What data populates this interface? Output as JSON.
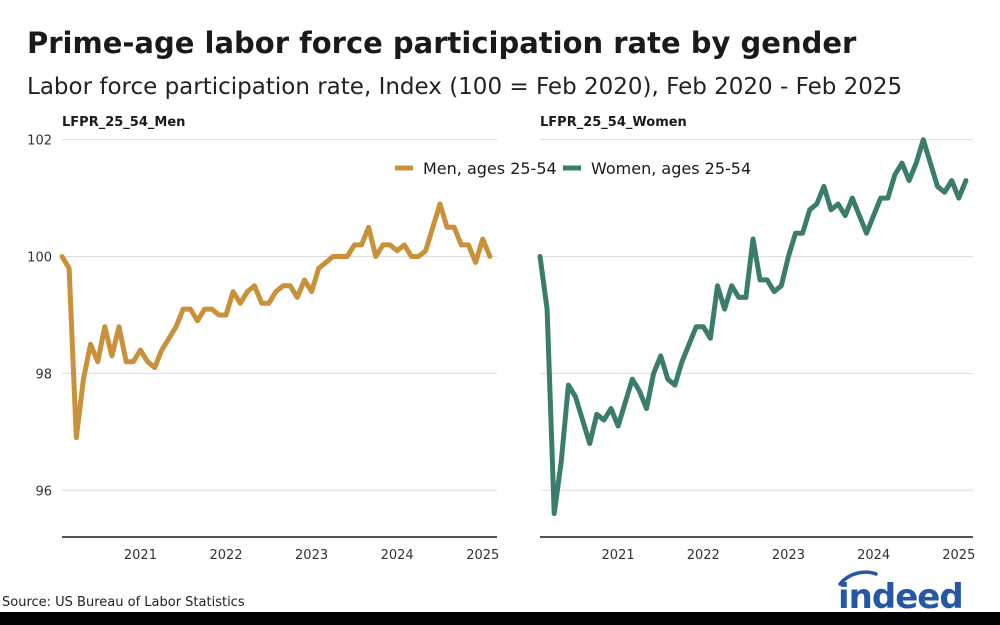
{
  "title": "Prime-age labor force participation rate by gender",
  "subtitle": "Labor force participation rate, Index (100 = Feb 2020), Feb 2020 - Feb 2025",
  "source": "Source: US Bureau of Labor Statistics",
  "logo_text": "indeed",
  "chart_data": {
    "type": "line",
    "ylim": [
      95.2,
      102.2
    ],
    "yticks": [
      96,
      98,
      100,
      102
    ],
    "ytick_labels": [
      "96",
      "98",
      "100",
      "102"
    ],
    "xlim": [
      "2020-02",
      "2025-03"
    ],
    "xticks": [
      "2021-01",
      "2022-01",
      "2023-01",
      "2024-01",
      "2025-01"
    ],
    "xtick_labels": [
      "2021",
      "2022",
      "2023",
      "2024",
      "2025"
    ],
    "grid": "horizontal",
    "legend": {
      "position": "top",
      "entries": [
        {
          "label": "Men, ages 25-54",
          "color": "#c8913a"
        },
        {
          "label": "Women, ages 25-54",
          "color": "#3b7d6c"
        }
      ]
    },
    "panels": [
      {
        "label": "LFPR_25_54_Men",
        "series_name": "Men, ages 25-54",
        "color": "#c8913a",
        "x": [
          "2020-02",
          "2020-03",
          "2020-04",
          "2020-05",
          "2020-06",
          "2020-07",
          "2020-08",
          "2020-09",
          "2020-10",
          "2020-11",
          "2020-12",
          "2021-01",
          "2021-02",
          "2021-03",
          "2021-04",
          "2021-05",
          "2021-06",
          "2021-07",
          "2021-08",
          "2021-09",
          "2021-10",
          "2021-11",
          "2021-12",
          "2022-01",
          "2022-02",
          "2022-03",
          "2022-04",
          "2022-05",
          "2022-06",
          "2022-07",
          "2022-08",
          "2022-09",
          "2022-10",
          "2022-11",
          "2022-12",
          "2023-01",
          "2023-02",
          "2023-03",
          "2023-04",
          "2023-05",
          "2023-06",
          "2023-07",
          "2023-08",
          "2023-09",
          "2023-10",
          "2023-11",
          "2023-12",
          "2024-01",
          "2024-02",
          "2024-03",
          "2024-04",
          "2024-05",
          "2024-06",
          "2024-07",
          "2024-08",
          "2024-09",
          "2024-10",
          "2024-11",
          "2024-12",
          "2025-01",
          "2025-02"
        ],
        "values": [
          100.0,
          99.8,
          96.9,
          97.9,
          98.5,
          98.2,
          98.8,
          98.3,
          98.8,
          98.2,
          98.2,
          98.4,
          98.2,
          98.1,
          98.4,
          98.6,
          98.8,
          99.1,
          99.1,
          98.9,
          99.1,
          99.1,
          99.0,
          99.0,
          99.4,
          99.2,
          99.4,
          99.5,
          99.2,
          99.2,
          99.4,
          99.5,
          99.5,
          99.3,
          99.6,
          99.4,
          99.8,
          99.9,
          100.0,
          100.0,
          100.0,
          100.2,
          100.2,
          100.5,
          100.0,
          100.2,
          100.2,
          100.1,
          100.2,
          100.0,
          100.0,
          100.1,
          100.5,
          100.9,
          100.5,
          100.5,
          100.2,
          100.2,
          99.9,
          100.3,
          100.0
        ]
      },
      {
        "label": "LFPR_25_54_Women",
        "series_name": "Women, ages 25-54",
        "color": "#3b7d6c",
        "x": [
          "2020-02",
          "2020-03",
          "2020-04",
          "2020-05",
          "2020-06",
          "2020-07",
          "2020-08",
          "2020-09",
          "2020-10",
          "2020-11",
          "2020-12",
          "2021-01",
          "2021-02",
          "2021-03",
          "2021-04",
          "2021-05",
          "2021-06",
          "2021-07",
          "2021-08",
          "2021-09",
          "2021-10",
          "2021-11",
          "2021-12",
          "2022-01",
          "2022-02",
          "2022-03",
          "2022-04",
          "2022-05",
          "2022-06",
          "2022-07",
          "2022-08",
          "2022-09",
          "2022-10",
          "2022-11",
          "2022-12",
          "2023-01",
          "2023-02",
          "2023-03",
          "2023-04",
          "2023-05",
          "2023-06",
          "2023-07",
          "2023-08",
          "2023-09",
          "2023-10",
          "2023-11",
          "2023-12",
          "2024-01",
          "2024-02",
          "2024-03",
          "2024-04",
          "2024-05",
          "2024-06",
          "2024-07",
          "2024-08",
          "2024-09",
          "2024-10",
          "2024-11",
          "2024-12",
          "2025-01",
          "2025-02"
        ],
        "values": [
          100.0,
          99.1,
          95.6,
          96.5,
          97.8,
          97.6,
          97.2,
          96.8,
          97.3,
          97.2,
          97.4,
          97.1,
          97.5,
          97.9,
          97.7,
          97.4,
          98.0,
          98.3,
          97.9,
          97.8,
          98.2,
          98.5,
          98.8,
          98.8,
          98.6,
          99.5,
          99.1,
          99.5,
          99.3,
          99.3,
          100.3,
          99.6,
          99.6,
          99.4,
          99.5,
          100.0,
          100.4,
          100.4,
          100.8,
          100.9,
          101.2,
          100.8,
          100.9,
          100.7,
          101.0,
          100.7,
          100.4,
          100.7,
          101.0,
          101.0,
          101.4,
          101.6,
          101.3,
          101.6,
          102.0,
          101.6,
          101.2,
          101.1,
          101.3,
          101.0,
          101.3
        ]
      }
    ]
  }
}
